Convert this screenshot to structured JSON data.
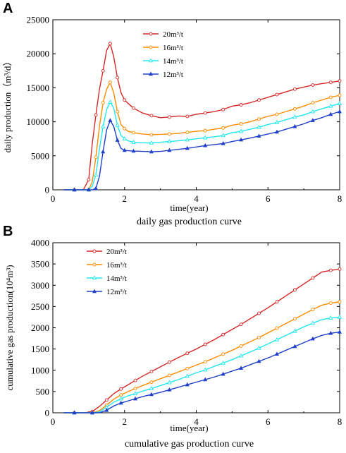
{
  "chart_data": [
    {
      "type": "line",
      "panel_label": "A",
      "title": "",
      "ylabel": "daily production（m³/d）",
      "xlabel": "time(year)",
      "caption": "daily gas production curve",
      "xlim": [
        0,
        8
      ],
      "ylim": [
        0,
        25000
      ],
      "xticks": [
        0,
        2,
        4,
        6,
        8
      ],
      "yticks": [
        0,
        5000,
        10000,
        15000,
        20000,
        25000
      ],
      "legend_position": "upper-middle",
      "grid": false,
      "x": [
        0.3,
        0.6,
        0.85,
        1.0,
        1.1,
        1.2,
        1.3,
        1.4,
        1.5,
        1.6,
        1.7,
        1.8,
        1.9,
        2.0,
        2.1,
        2.25,
        2.5,
        2.75,
        3.0,
        3.25,
        3.5,
        3.75,
        4.0,
        4.25,
        4.5,
        4.75,
        5.0,
        5.25,
        5.5,
        5.75,
        6.0,
        6.25,
        6.5,
        6.75,
        7.0,
        7.25,
        7.5,
        7.75,
        8.0
      ],
      "series": [
        {
          "name": "20m³/t",
          "color": "#d62728",
          "marker": "open-circle",
          "values": [
            0,
            0,
            0,
            1500,
            6800,
            11000,
            14800,
            17500,
            20500,
            21500,
            19500,
            16500,
            14300,
            13200,
            12700,
            12000,
            11300,
            10900,
            10600,
            10700,
            10850,
            10800,
            11100,
            11300,
            11500,
            11800,
            12300,
            12500,
            12800,
            13200,
            13600,
            14000,
            14400,
            14800,
            15100,
            15400,
            15600,
            15800,
            16000
          ]
        },
        {
          "name": "16m³/t",
          "color": "#ff8c00",
          "marker": "open-circle",
          "values": [
            0,
            0,
            0,
            0,
            1200,
            4800,
            9300,
            12800,
            14800,
            15800,
            14200,
            11500,
            9600,
            9000,
            8600,
            8400,
            8200,
            8100,
            8150,
            8200,
            8300,
            8450,
            8600,
            8700,
            8900,
            9100,
            9500,
            9700,
            10000,
            10400,
            10800,
            11100,
            11500,
            11900,
            12300,
            12800,
            13200,
            13600,
            13900
          ]
        },
        {
          "name": "14m³/t",
          "color": "#1ee8f0",
          "marker": "open-triangle",
          "values": [
            0,
            0,
            0,
            0,
            500,
            2200,
            6000,
            9300,
            11800,
            12900,
            12000,
            9500,
            8000,
            7500,
            7200,
            7000,
            6900,
            6900,
            7000,
            7100,
            7200,
            7350,
            7500,
            7650,
            7800,
            8000,
            8400,
            8600,
            8900,
            9200,
            9600,
            9900,
            10300,
            10700,
            11000,
            11500,
            11900,
            12300,
            12700
          ]
        },
        {
          "name": "12m³/t",
          "color": "#1f3ec9",
          "marker": "filled-triangle",
          "values": [
            0,
            0,
            0,
            0,
            0,
            200,
            2000,
            5600,
            8800,
            10200,
            9300,
            7300,
            6100,
            5800,
            5750,
            5700,
            5650,
            5600,
            5650,
            5800,
            5950,
            6100,
            6300,
            6500,
            6650,
            6800,
            7100,
            7350,
            7600,
            7900,
            8200,
            8500,
            8900,
            9300,
            9700,
            10200,
            10600,
            11100,
            11500
          ]
        }
      ]
    },
    {
      "type": "line",
      "panel_label": "B",
      "title": "",
      "ylabel": "cumulative gas production(10⁴m³)",
      "xlabel": "time(year)",
      "caption": "cumulative gas production curve",
      "xlim": [
        0,
        8
      ],
      "ylim": [
        0,
        4000
      ],
      "xticks": [
        0,
        2,
        4,
        6,
        8
      ],
      "yticks": [
        0,
        500,
        1000,
        1500,
        2000,
        2500,
        3000,
        3500,
        4000
      ],
      "legend_position": "upper-left",
      "grid": false,
      "x": [
        0.3,
        0.6,
        0.9,
        1.1,
        1.3,
        1.5,
        1.7,
        1.9,
        2.1,
        2.3,
        2.5,
        2.75,
        3.0,
        3.25,
        3.5,
        3.75,
        4.0,
        4.25,
        4.5,
        4.75,
        5.0,
        5.25,
        5.5,
        5.75,
        6.0,
        6.25,
        6.5,
        6.75,
        7.0,
        7.25,
        7.5,
        7.75,
        8.0
      ],
      "series": [
        {
          "name": "20m³/t",
          "color": "#d62728",
          "marker": "open-circle",
          "values": [
            0,
            0,
            0,
            30,
            150,
            300,
            450,
            560,
            660,
            760,
            860,
            970,
            1080,
            1190,
            1300,
            1400,
            1500,
            1610,
            1720,
            1840,
            1960,
            2080,
            2210,
            2340,
            2470,
            2610,
            2750,
            2890,
            3030,
            3170,
            3310,
            3350,
            3380
          ]
        },
        {
          "name": "16m³/t",
          "color": "#ff8c00",
          "marker": "open-circle",
          "values": [
            0,
            0,
            0,
            0,
            50,
            180,
            320,
            420,
            500,
            570,
            640,
            720,
            800,
            880,
            960,
            1040,
            1120,
            1200,
            1290,
            1380,
            1470,
            1570,
            1670,
            1770,
            1880,
            1990,
            2100,
            2210,
            2320,
            2430,
            2530,
            2580,
            2610
          ]
        },
        {
          "name": "14m³/t",
          "color": "#1ee8f0",
          "marker": "open-triangle",
          "values": [
            0,
            0,
            0,
            0,
            20,
            130,
            250,
            330,
            400,
            450,
            510,
            570,
            640,
            710,
            780,
            860,
            940,
            1010,
            1090,
            1170,
            1250,
            1340,
            1430,
            1520,
            1620,
            1720,
            1820,
            1920,
            2020,
            2110,
            2190,
            2230,
            2250
          ]
        },
        {
          "name": "12m³/t",
          "color": "#1f3ec9",
          "marker": "filled-triangle",
          "values": [
            0,
            0,
            0,
            0,
            0,
            60,
            160,
            230,
            280,
            330,
            380,
            430,
            480,
            540,
            600,
            660,
            720,
            780,
            840,
            910,
            980,
            1050,
            1130,
            1210,
            1290,
            1380,
            1470,
            1560,
            1650,
            1740,
            1820,
            1870,
            1900
          ]
        }
      ]
    }
  ]
}
